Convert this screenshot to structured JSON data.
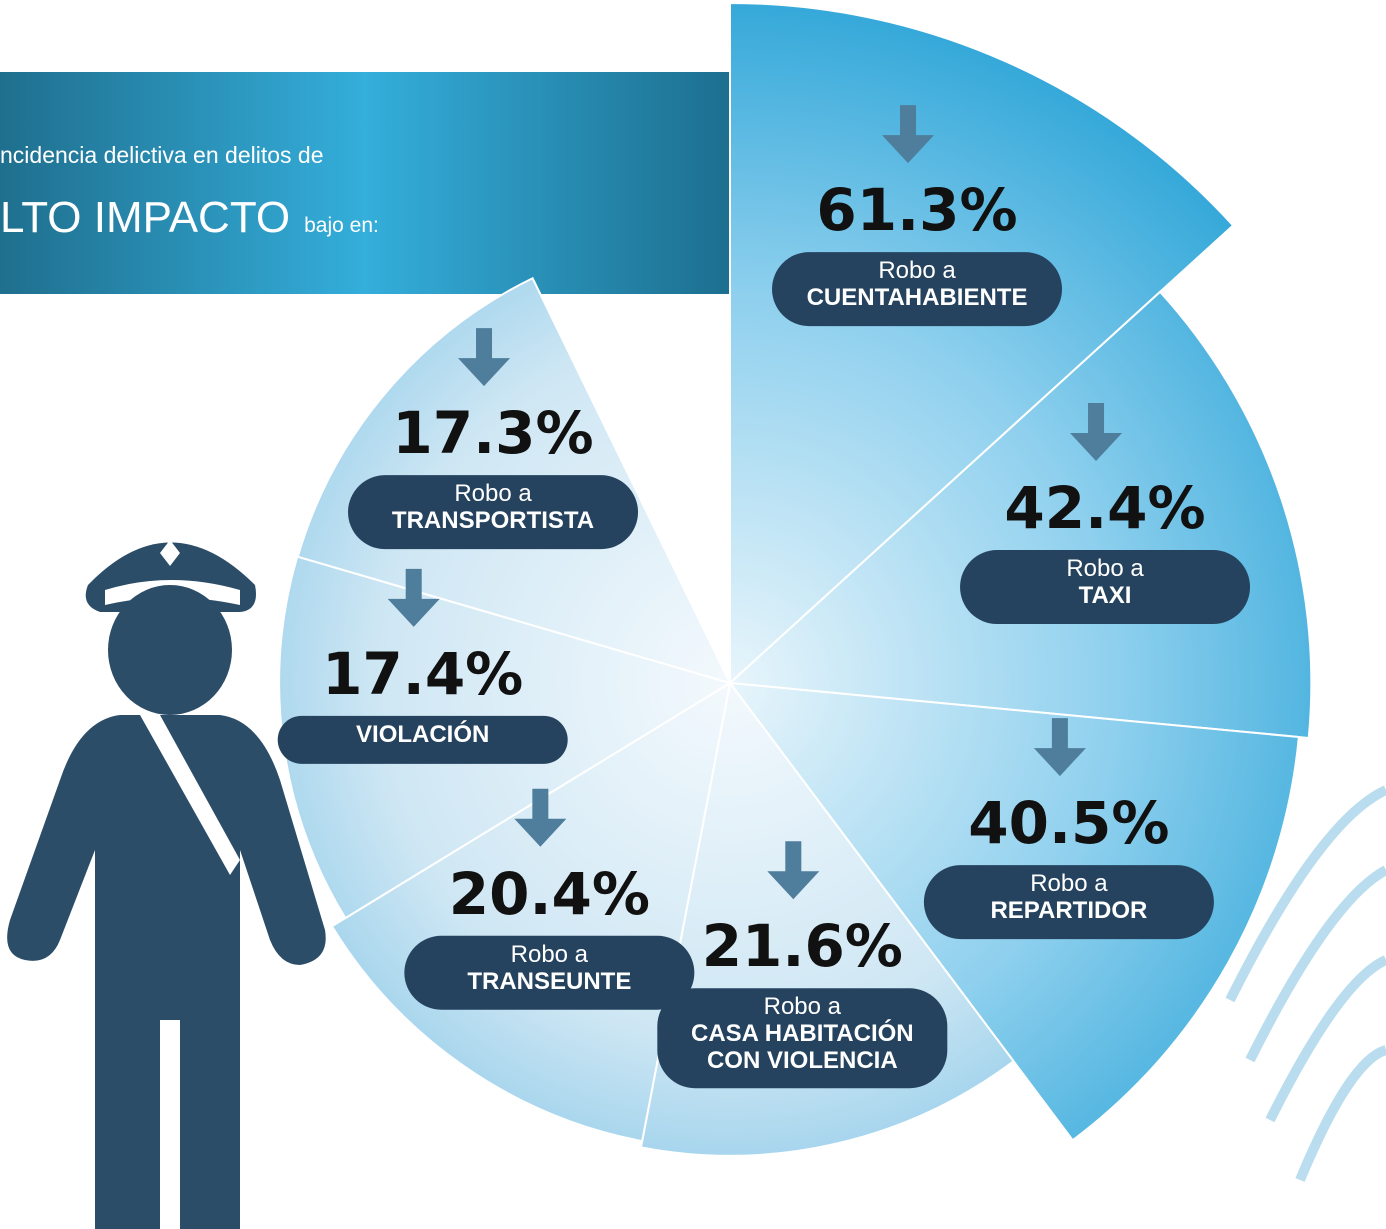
{
  "chart_data": {
    "type": "polar",
    "title": "ncidencia delictiva en delitos de",
    "subtitle": "LTO IMPACTO",
    "subtitle_suffix": "bajo en:",
    "categories": [
      [
        "Robo a",
        "CUENTAHABIENTE"
      ],
      [
        "Robo a",
        "TAXI"
      ],
      [
        "Robo a",
        "REPARTIDOR"
      ],
      [
        "Robo a",
        "CASA HABITACIÓN",
        "CON VIOLENCIA"
      ],
      [
        "Robo a",
        "TRANSEUNTE"
      ],
      [
        "VIOLACIÓN"
      ],
      [
        "Robo a",
        "TRANSPORTISTA"
      ]
    ],
    "values": [
      61.3,
      42.4,
      40.5,
      21.6,
      20.4,
      17.4,
      17.3
    ],
    "value_labels": [
      "61.3%",
      "42.4%",
      "40.5%",
      "21.6%",
      "20.4%",
      "17.4%",
      "17.3%"
    ],
    "color": "#3fb0dc"
  }
}
